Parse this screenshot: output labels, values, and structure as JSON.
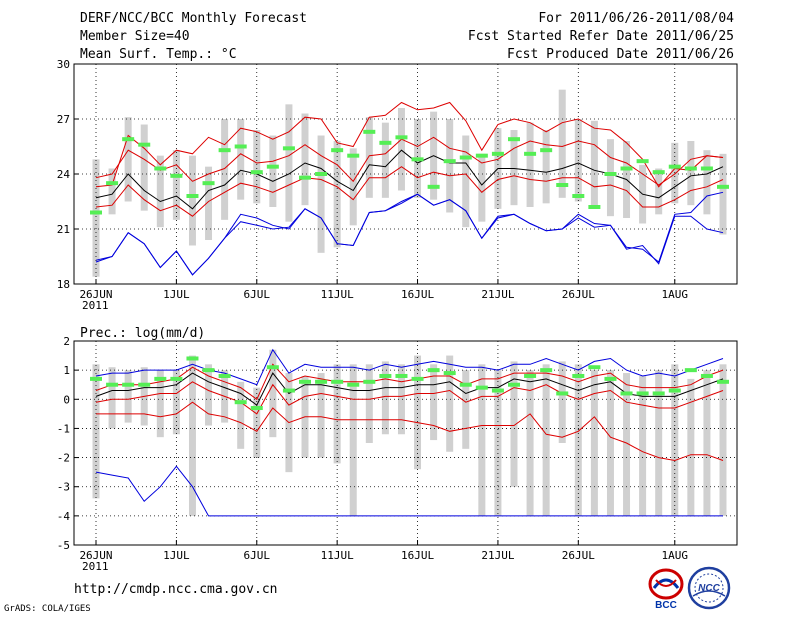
{
  "header": {
    "title": "DERF/NCC/BCC Monthly Forecast",
    "member_size": "Member Size=40",
    "variable": "Mean Surf. Temp.: °C",
    "period": "For 2011/06/26-2011/08/04",
    "fcst_started": "Fcst Started Refer Date 2011/06/25",
    "fcst_produced": "Fcst Produced Date 2011/06/26"
  },
  "footer": {
    "url": "http://cmdp.ncc.cma.gov.cn",
    "credit": "GrADS: COLA/IGES",
    "logo_left": "BCC",
    "logo_right": "NCC"
  },
  "colors": {
    "envelope": "#0000dd",
    "spread": "#dd0000",
    "mean": "#000000",
    "box": "#d0d0d0",
    "bar": "#55ee55"
  },
  "chart_data": [
    {
      "type": "line",
      "title": "Mean Surf. Temp.: °C",
      "x_tick_labels": [
        "26JUN",
        "1JUL",
        "6JUL",
        "11JUL",
        "16JUL",
        "21JUL",
        "26JUL",
        "1AUG"
      ],
      "x_tick_days": [
        0,
        5,
        10,
        15,
        20,
        25,
        30,
        36
      ],
      "year_label": "2011",
      "ylim": [
        18,
        30
      ],
      "yticks": [
        "18",
        "21",
        "24",
        "27",
        "30"
      ],
      "days": 40,
      "series": [
        {
          "name": "max",
          "values": [
            19.2,
            19.5,
            20.8,
            20.2,
            18.9,
            19.8,
            18.5,
            19.4,
            20.5,
            21.8,
            21.6,
            21.2,
            21.0,
            22.1,
            21.6,
            20.2,
            20.1,
            21.9,
            22.0,
            22.4,
            22.9,
            22.3,
            22.6,
            22.0,
            20.5,
            21.7,
            21.8,
            21.3,
            20.9,
            21.0,
            21.8,
            21.3,
            21.2,
            20.0,
            19.9,
            19.2,
            21.8,
            21.9,
            22.8,
            23.0
          ]
        },
        {
          "name": "upper",
          "values": [
            23.3,
            23.4,
            26.1,
            25.4,
            24.5,
            25.3,
            25.1,
            26.0,
            25.6,
            26.5,
            26.3,
            25.9,
            26.3,
            27.1,
            27.0,
            25.7,
            25.5,
            27.1,
            27.2,
            27.9,
            27.5,
            27.6,
            27.9,
            26.9,
            25.3,
            26.7,
            27.0,
            26.8,
            26.3,
            26.8,
            27.0,
            26.5,
            26.4,
            25.7,
            24.8,
            23.3,
            24.3,
            24.2,
            25.0,
            24.9
          ]
        },
        {
          "name": "p75",
          "values": [
            23.8,
            24.0,
            25.3,
            24.8,
            24.2,
            24.5,
            23.6,
            24.0,
            24.3,
            25.1,
            24.6,
            24.7,
            25.0,
            25.6,
            25.0,
            24.5,
            23.6,
            25.0,
            25.1,
            25.9,
            25.5,
            26.0,
            25.4,
            25.2,
            24.6,
            24.8,
            25.4,
            25.8,
            25.6,
            25.5,
            25.8,
            25.6,
            24.9,
            24.6,
            24.0,
            23.4,
            24.0,
            24.8,
            25.0,
            24.9
          ]
        },
        {
          "name": "mean",
          "values": [
            22.7,
            22.9,
            24.0,
            23.1,
            22.5,
            22.8,
            22.1,
            23.1,
            23.4,
            24.2,
            24.0,
            23.6,
            24.0,
            24.6,
            24.3,
            23.6,
            23.1,
            24.5,
            24.4,
            25.3,
            24.6,
            25.0,
            24.6,
            24.6,
            23.4,
            24.3,
            24.3,
            24.2,
            24.1,
            24.3,
            24.6,
            24.2,
            24.0,
            23.7,
            22.9,
            22.7,
            23.3,
            23.9,
            24.0,
            24.4
          ]
        },
        {
          "name": "p25",
          "values": [
            22.2,
            22.3,
            23.4,
            22.6,
            22.0,
            22.3,
            21.7,
            22.5,
            23.0,
            23.5,
            23.3,
            23.0,
            23.4,
            23.8,
            23.7,
            23.3,
            22.6,
            23.8,
            23.8,
            24.4,
            23.8,
            24.1,
            23.9,
            24.0,
            23.0,
            23.7,
            23.9,
            23.7,
            23.6,
            23.8,
            23.8,
            23.3,
            23.4,
            23.1,
            22.2,
            22.2,
            22.6,
            23.1,
            23.3,
            23.7
          ]
        },
        {
          "name": "min",
          "values": [
            19.3,
            19.5,
            20.8,
            20.2,
            18.9,
            19.8,
            18.5,
            19.4,
            20.5,
            21.4,
            21.2,
            21.0,
            21.1,
            22.1,
            21.6,
            20.2,
            20.1,
            21.9,
            22.0,
            22.5,
            22.9,
            22.3,
            22.6,
            22.0,
            20.5,
            21.6,
            21.8,
            21.3,
            20.9,
            21.0,
            21.6,
            21.1,
            21.2,
            19.9,
            20.1,
            19.1,
            21.7,
            21.7,
            21.0,
            20.8
          ]
        }
      ],
      "boxes": [
        [
          18.4,
          24.8
        ],
        [
          21.8,
          24.3
        ],
        [
          22.5,
          27.1
        ],
        [
          22.0,
          26.7
        ],
        [
          21.1,
          25.0
        ],
        [
          21.5,
          25.3
        ],
        [
          20.1,
          25.0
        ],
        [
          20.4,
          24.4
        ],
        [
          21.5,
          27.0
        ],
        [
          22.6,
          27.0
        ],
        [
          22.4,
          26.4
        ],
        [
          22.2,
          26.1
        ],
        [
          21.4,
          27.8
        ],
        [
          22.3,
          27.3
        ],
        [
          19.7,
          26.1
        ],
        [
          20.0,
          25.8
        ],
        [
          21.2,
          25.4
        ],
        [
          22.7,
          27.1
        ],
        [
          22.7,
          26.8
        ],
        [
          23.1,
          27.6
        ],
        [
          22.7,
          27.0
        ],
        [
          22.6,
          27.4
        ],
        [
          21.9,
          27.0
        ],
        [
          21.1,
          26.1
        ],
        [
          21.4,
          25.1
        ],
        [
          22.1,
          26.5
        ],
        [
          22.3,
          26.4
        ],
        [
          22.2,
          26.8
        ],
        [
          22.4,
          26.4
        ],
        [
          22.7,
          28.6
        ],
        [
          22.5,
          27.0
        ],
        [
          22.1,
          26.9
        ],
        [
          21.7,
          25.9
        ],
        [
          21.6,
          25.8
        ],
        [
          21.3,
          24.5
        ],
        [
          21.8,
          24.3
        ],
        [
          22.4,
          25.7
        ],
        [
          22.3,
          25.8
        ],
        [
          21.8,
          25.3
        ],
        [
          20.7,
          25.1
        ]
      ],
      "bars": [
        21.9,
        23.5,
        25.9,
        25.6,
        24.3,
        23.9,
        22.8,
        23.5,
        25.3,
        25.5,
        24.1,
        24.4,
        25.4,
        23.8,
        24.0,
        25.3,
        25.0,
        26.3,
        25.7,
        26.0,
        24.8,
        23.3,
        24.7,
        24.9,
        25.0,
        25.1,
        25.9,
        25.1,
        25.3,
        23.4,
        22.8,
        22.2,
        24.0,
        24.3,
        24.7,
        24.1,
        24.4,
        24.3,
        24.3,
        23.3
      ]
    },
    {
      "type": "line",
      "title": "Prec.: log(mm/d)",
      "x_tick_labels": [
        "26JUN",
        "1JUL",
        "6JUL",
        "11JUL",
        "16JUL",
        "21JUL",
        "26JUL",
        "1AUG"
      ],
      "x_tick_days": [
        0,
        5,
        10,
        15,
        20,
        25,
        30,
        36
      ],
      "year_label": "2011",
      "ylim": [
        -5,
        2
      ],
      "yticks": [
        "-5",
        "-4",
        "-3",
        "-2",
        "-1",
        "0",
        "1",
        "2"
      ],
      "days": 40,
      "series": [
        {
          "name": "max",
          "values": [
            0.8,
            0.9,
            0.9,
            1.0,
            1.0,
            1.0,
            1.2,
            1.0,
            0.9,
            0.7,
            0.5,
            1.7,
            0.9,
            1.2,
            1.1,
            1.1,
            1.1,
            1.0,
            1.2,
            1.1,
            1.2,
            1.3,
            1.2,
            1.1,
            1.1,
            1.0,
            1.2,
            1.2,
            1.4,
            1.2,
            1.0,
            1.3,
            1.4,
            1.0,
            0.8,
            0.9,
            0.8,
            1.0,
            1.2,
            1.4
          ]
        },
        {
          "name": "upper",
          "values": [
            0.3,
            0.5,
            0.5,
            0.5,
            0.6,
            0.7,
            1.1,
            0.8,
            0.6,
            0.4,
            0.0,
            1.2,
            0.6,
            0.8,
            0.7,
            0.6,
            0.6,
            0.6,
            0.7,
            0.6,
            0.7,
            0.8,
            0.8,
            0.5,
            0.7,
            0.7,
            0.9,
            0.9,
            0.9,
            0.8,
            0.6,
            0.8,
            0.9,
            0.5,
            0.4,
            0.4,
            0.4,
            0.5,
            0.8,
            1.0
          ]
        },
        {
          "name": "mean",
          "values": [
            0.1,
            0.3,
            0.3,
            0.4,
            0.4,
            0.5,
            0.9,
            0.6,
            0.4,
            0.2,
            -0.2,
            0.9,
            0.2,
            0.5,
            0.5,
            0.4,
            0.3,
            0.3,
            0.4,
            0.4,
            0.5,
            0.5,
            0.6,
            0.2,
            0.4,
            0.4,
            0.7,
            0.6,
            0.7,
            0.5,
            0.3,
            0.5,
            0.6,
            0.2,
            0.1,
            0.1,
            0.1,
            0.3,
            0.5,
            0.7
          ]
        },
        {
          "name": "lower",
          "values": [
            -0.1,
            0.0,
            0.0,
            0.1,
            0.2,
            0.2,
            0.6,
            0.3,
            0.1,
            -0.1,
            -0.5,
            0.5,
            -0.2,
            0.1,
            0.2,
            0.1,
            0.0,
            0.0,
            0.1,
            0.1,
            0.2,
            0.2,
            0.3,
            -0.1,
            0.1,
            0.1,
            0.4,
            0.3,
            0.5,
            0.2,
            0.0,
            0.2,
            0.3,
            -0.1,
            -0.2,
            -0.3,
            -0.3,
            -0.1,
            0.1,
            0.3
          ]
        },
        {
          "name": "p10",
          "values": [
            -0.5,
            -0.5,
            -0.5,
            -0.5,
            -0.6,
            -0.5,
            -0.1,
            -0.5,
            -0.6,
            -0.8,
            -1.1,
            -0.3,
            -0.8,
            -0.6,
            -0.6,
            -0.7,
            -0.7,
            -0.7,
            -0.7,
            -0.7,
            -0.8,
            -0.9,
            -1.1,
            -1.0,
            -0.9,
            -0.9,
            -0.9,
            -0.5,
            -1.2,
            -1.3,
            -1.1,
            -0.6,
            -1.3,
            -1.5,
            -1.8,
            -2.0,
            -2.1,
            -1.9,
            -1.9,
            -2.1
          ]
        },
        {
          "name": "min",
          "values": [
            -2.5,
            -2.6,
            -2.7,
            -3.5,
            -3.0,
            -2.3,
            -3.0,
            -4.0,
            -4.0,
            -4.0,
            -4.0,
            -4.0,
            -4.0,
            -4.0,
            -4.0,
            -4.0,
            -4.0,
            -4.0,
            -4.0,
            -4.0,
            -4.0,
            -4.0,
            -4.0,
            -4.0,
            -4.0,
            -4.0,
            -4.0,
            -4.0,
            -4.0,
            -4.0,
            -4.0,
            -4.0,
            -4.0,
            -4.0,
            -4.0,
            -4.0,
            -4.0,
            -4.0,
            -4.0,
            -4.0
          ]
        }
      ],
      "boxes": [
        [
          -3.4,
          1.2
        ],
        [
          -1.0,
          1.1
        ],
        [
          -0.8,
          1.0
        ],
        [
          -0.9,
          1.1
        ],
        [
          -1.3,
          1.0
        ],
        [
          -1.2,
          1.0
        ],
        [
          -4.0,
          1.5
        ],
        [
          -0.9,
          1.2
        ],
        [
          -0.8,
          1.0
        ],
        [
          -1.7,
          0.6
        ],
        [
          -2.0,
          0.4
        ],
        [
          -1.3,
          1.7
        ],
        [
          -2.5,
          0.9
        ],
        [
          -2.0,
          0.8
        ],
        [
          -2.0,
          0.9
        ],
        [
          -2.2,
          1.2
        ],
        [
          -4.0,
          1.2
        ],
        [
          -1.5,
          1.2
        ],
        [
          -1.2,
          1.3
        ],
        [
          -1.2,
          1.2
        ],
        [
          -2.4,
          1.5
        ],
        [
          -1.4,
          1.2
        ],
        [
          -1.8,
          1.5
        ],
        [
          -1.7,
          1.0
        ],
        [
          -4.0,
          1.2
        ],
        [
          -4.0,
          1.0
        ],
        [
          -3.0,
          1.3
        ],
        [
          -4.0,
          1.0
        ],
        [
          -4.0,
          1.2
        ],
        [
          -1.5,
          1.3
        ],
        [
          -4.0,
          1.2
        ],
        [
          -4.0,
          1.0
        ],
        [
          -4.0,
          1.0
        ],
        [
          -4.0,
          0.9
        ],
        [
          -4.0,
          0.8
        ],
        [
          -4.0,
          1.0
        ],
        [
          -4.0,
          1.2
        ],
        [
          -4.0,
          0.7
        ],
        [
          -4.0,
          1.0
        ],
        [
          -4.0,
          1.2
        ]
      ],
      "bars": [
        0.7,
        0.5,
        0.5,
        0.5,
        0.7,
        0.7,
        1.4,
        1.0,
        0.8,
        -0.1,
        -0.3,
        1.1,
        0.3,
        0.6,
        0.6,
        0.6,
        0.5,
        0.6,
        0.8,
        0.8,
        0.7,
        1.0,
        0.9,
        0.5,
        0.4,
        0.3,
        0.5,
        0.8,
        1.0,
        0.2,
        0.8,
        1.1,
        0.7,
        0.2,
        0.2,
        0.2,
        0.3,
        1.0,
        0.8,
        0.6
      ]
    }
  ]
}
